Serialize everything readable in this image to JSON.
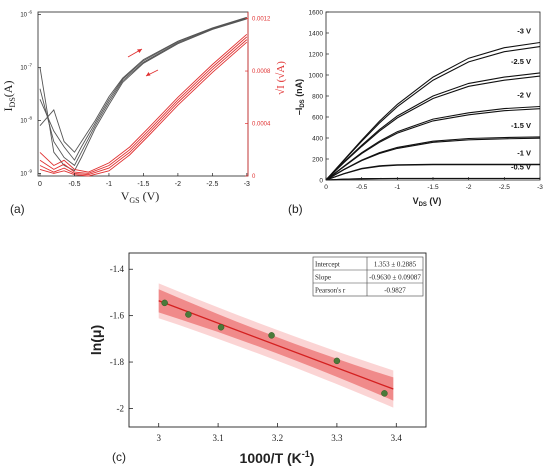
{
  "chart_data": [
    {
      "panel": "(a)",
      "type": "line",
      "xlabel_main": "V",
      "xlabel_sub": "GS",
      "xlabel_unit": "  (V)",
      "ylabel_main": "I",
      "ylabel_sub": "DS",
      "ylabel_unit": "(A)",
      "y2label": "√I  (√A)",
      "xticks": [
        "0",
        "-0.5",
        "-1",
        "-1.5",
        "-2",
        "-2.5",
        "-3"
      ],
      "yticks": [
        "10",
        "10",
        "10",
        "10"
      ],
      "yticks_exp": [
        "-6",
        "-7",
        "-8",
        "-9"
      ],
      "y2ticks": [
        "0.0012",
        "0.0008",
        "0.0004",
        "0"
      ],
      "xlim": [
        0,
        -3
      ],
      "series": [
        {
          "color": "#555555",
          "x": [
            0,
            -0.2,
            -0.35,
            -0.5,
            -0.6,
            -0.8,
            -1.0,
            -1.2,
            -1.5,
            -2.0,
            -2.5,
            -3.0
          ],
          "log10_y": [
            -8.1,
            -7.8,
            -8.4,
            -8.6,
            -8.4,
            -8.0,
            -7.55,
            -7.2,
            -6.85,
            -6.5,
            -6.25,
            -6.05
          ]
        },
        {
          "color": "#555555",
          "x": [
            0,
            -0.2,
            -0.35,
            -0.5,
            -0.6,
            -0.8,
            -1.0,
            -1.2,
            -1.5,
            -2.0,
            -2.5,
            -3.0
          ],
          "log10_y": [
            -7.6,
            -8.2,
            -8.5,
            -8.75,
            -8.5,
            -8.05,
            -7.6,
            -7.22,
            -6.87,
            -6.51,
            -6.26,
            -6.06
          ]
        },
        {
          "color": "#555555",
          "x": [
            0,
            -0.2,
            -0.35,
            -0.5,
            -0.6,
            -0.8,
            -1.0,
            -1.2,
            -1.5,
            -2.0,
            -2.5,
            -3.0
          ],
          "log10_y": [
            -7.4,
            -8.4,
            -8.7,
            -8.85,
            -8.6,
            -8.1,
            -7.65,
            -7.25,
            -6.9,
            -6.53,
            -6.27,
            -6.07
          ]
        },
        {
          "color": "#555555",
          "x": [
            0,
            -0.2,
            -0.35,
            -0.5,
            -0.6,
            -0.8,
            -1.0,
            -1.2,
            -1.5,
            -2.0,
            -2.5,
            -3.0
          ],
          "log10_y": [
            -7.0,
            -8.6,
            -8.85,
            -8.95,
            -8.7,
            -8.15,
            -7.7,
            -7.28,
            -6.92,
            -6.55,
            -6.28,
            -6.08
          ]
        },
        {
          "color": "#e03030",
          "x": [
            0,
            -0.2,
            -0.35,
            -0.5,
            -0.7,
            -1.0,
            -1.3,
            -1.6,
            -2.0,
            -2.5,
            -3.0
          ],
          "sqrt_y": [
            0.00018,
            8e-05,
            0.00012,
            5e-05,
            3e-05,
            0.0001,
            0.00022,
            0.00038,
            0.0006,
            0.00085,
            0.00108
          ]
        },
        {
          "color": "#e03030",
          "x": [
            0,
            -0.2,
            -0.35,
            -0.5,
            -0.7,
            -1.0,
            -1.3,
            -1.6,
            -2.0,
            -2.5,
            -3.0
          ],
          "sqrt_y": [
            0.00012,
            5e-05,
            9e-05,
            3e-05,
            2e-05,
            8e-05,
            0.0002,
            0.00036,
            0.00058,
            0.00083,
            0.00106
          ]
        },
        {
          "color": "#e03030",
          "x": [
            0,
            -0.2,
            -0.35,
            -0.5,
            -0.7,
            -1.0,
            -1.3,
            -1.6,
            -2.0,
            -2.5,
            -3.0
          ],
          "sqrt_y": [
            8e-05,
            3e-05,
            6e-05,
            2e-05,
            1e-05,
            6e-05,
            0.00018,
            0.00034,
            0.00056,
            0.00081,
            0.00104
          ]
        },
        {
          "color": "#e03030",
          "x": [
            0,
            -0.2,
            -0.35,
            -0.5,
            -0.7,
            -1.0,
            -1.3,
            -1.6,
            -2.0,
            -2.5,
            -3.0
          ],
          "sqrt_y": [
            5e-05,
            2e-05,
            4e-05,
            1e-05,
            0.0,
            4e-05,
            0.00016,
            0.00032,
            0.00054,
            0.00079,
            0.00102
          ]
        }
      ]
    },
    {
      "panel": "(b)",
      "type": "line",
      "xlabel": "V",
      "xlabel_sub": "DS",
      "xlabel_unit": " (V)",
      "ylabel": "–I",
      "ylabel_sub": "DS",
      "ylabel_unit": " (nA)",
      "xticks": [
        "0",
        "-0.5",
        "-1",
        "-1.5",
        "-2",
        "-2.5",
        "-3"
      ],
      "yticks": [
        "0",
        "200",
        "400",
        "600",
        "800",
        "1000",
        "1200",
        "1400",
        "1600"
      ],
      "xlim": [
        0,
        -3
      ],
      "ylim": [
        0,
        1600
      ],
      "series": [
        {
          "name": "-3 V",
          "x": [
            0,
            -0.25,
            -0.5,
            -0.75,
            -1,
            -1.5,
            -2,
            -2.5,
            -3
          ],
          "y": [
            0,
            190,
            380,
            560,
            720,
            980,
            1160,
            1260,
            1310
          ]
        },
        {
          "name": "-2.5 V",
          "x": [
            0,
            -0.25,
            -0.5,
            -0.75,
            -1,
            -1.5,
            -2,
            -2.5,
            -3
          ],
          "y": [
            0,
            170,
            330,
            480,
            610,
            800,
            920,
            980,
            1020
          ]
        },
        {
          "name": "-2 V",
          "x": [
            0,
            -0.25,
            -0.5,
            -0.75,
            -1,
            -1.5,
            -2,
            -2.5,
            -3
          ],
          "y": [
            0,
            130,
            260,
            370,
            460,
            580,
            640,
            680,
            700
          ]
        },
        {
          "name": "-1.5 V",
          "x": [
            0,
            -0.25,
            -0.5,
            -0.75,
            -1,
            -1.5,
            -2,
            -2.5,
            -3
          ],
          "y": [
            0,
            100,
            190,
            260,
            310,
            370,
            395,
            405,
            410
          ]
        },
        {
          "name": "-1 V",
          "x": [
            0,
            -0.25,
            -0.5,
            -0.75,
            -1,
            -1.5,
            -2,
            -2.5,
            -3
          ],
          "y": [
            0,
            60,
            110,
            135,
            145,
            150,
            150,
            150,
            150
          ]
        },
        {
          "name": "-0.5 V",
          "x": [
            0,
            -0.25,
            -0.5,
            -0.75,
            -1,
            -1.5,
            -2,
            -2.5,
            -3
          ],
          "y": [
            0,
            8,
            12,
            14,
            15,
            15,
            15,
            15,
            15
          ]
        }
      ]
    },
    {
      "panel": "(c)",
      "type": "scatter",
      "xlabel": "1000/T (K",
      "xlabel_sup": "-1",
      "xlabel_close": ")",
      "ylabel": "ln(μ)",
      "xticks": [
        "3",
        "3.1",
        "3.2",
        "3.3",
        "3.4"
      ],
      "yticks": [
        "-1.4",
        "-1.6",
        "-1.8",
        "-2"
      ],
      "xlim": [
        2.95,
        3.45
      ],
      "ylim": [
        -2.08,
        -1.33
      ],
      "x": [
        3.01,
        3.05,
        3.105,
        3.19,
        3.3,
        3.38
      ],
      "y": [
        -1.545,
        -1.595,
        -1.65,
        -1.685,
        -1.795,
        -1.935
      ],
      "fit": {
        "intercept": 1.353,
        "slope": -0.963
      },
      "table": [
        [
          "Intercept",
          "1.353 ± 0.2885"
        ],
        [
          "Slope",
          "-0.9630 ± 0.09087"
        ],
        [
          "Pearson's r",
          "-0.9827"
        ]
      ]
    }
  ],
  "labels": {
    "a": "(a)",
    "b": "(b)",
    "c": "(c)"
  }
}
